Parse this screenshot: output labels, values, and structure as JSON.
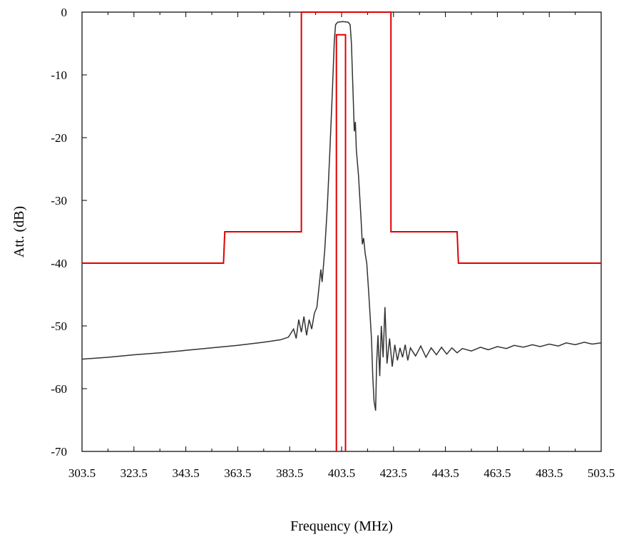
{
  "chart_data": {
    "type": "line",
    "xlabel": "Frequency (MHz)",
    "ylabel": "Att. (dB)",
    "xlim": [
      303.5,
      503.5
    ],
    "ylim": [
      -70,
      0
    ],
    "x_ticks": [
      303.5,
      323.5,
      343.5,
      363.5,
      383.5,
      403.5,
      423.5,
      443.5,
      463.5,
      483.5,
      503.5
    ],
    "x_tick_labels": [
      "303.5",
      "323.5",
      "343.5",
      "363.5",
      "383.5",
      "403.5",
      "423.5",
      "443.5",
      "463.5",
      "483.5",
      "503.5"
    ],
    "y_ticks": [
      0,
      -10,
      -20,
      -30,
      -40,
      -50,
      -60,
      -70
    ],
    "y_tick_labels": [
      "0",
      "-10",
      "-20",
      "-30",
      "-40",
      "-50",
      "-60",
      "-70"
    ],
    "grid": false,
    "colors": {
      "response": "#333333",
      "mask": "#e00000",
      "axis": "#000000"
    },
    "series": [
      {
        "role": "response",
        "points": [
          [
            303.5,
            -55.3
          ],
          [
            313.5,
            -55.0
          ],
          [
            323.5,
            -54.6
          ],
          [
            333.5,
            -54.3
          ],
          [
            343.5,
            -53.9
          ],
          [
            353.5,
            -53.5
          ],
          [
            363.5,
            -53.1
          ],
          [
            373.5,
            -52.6
          ],
          [
            380.0,
            -52.2
          ],
          [
            383.0,
            -51.8
          ],
          [
            385.0,
            -50.5
          ],
          [
            386.0,
            -52.0
          ],
          [
            387.0,
            -49.0
          ],
          [
            388.0,
            -51.0
          ],
          [
            389.0,
            -48.5
          ],
          [
            390.0,
            -51.5
          ],
          [
            391.0,
            -49.0
          ],
          [
            392.0,
            -50.5
          ],
          [
            393.0,
            -48.0
          ],
          [
            394.0,
            -47.0
          ],
          [
            395.5,
            -41.0
          ],
          [
            396.0,
            -43.0
          ],
          [
            397.0,
            -38.0
          ],
          [
            398.0,
            -31.0
          ],
          [
            399.0,
            -22.0
          ],
          [
            400.0,
            -12.0
          ],
          [
            400.7,
            -4.5
          ],
          [
            401.2,
            -2.0
          ],
          [
            402.0,
            -1.6
          ],
          [
            404.0,
            -1.5
          ],
          [
            406.0,
            -1.6
          ],
          [
            406.8,
            -2.0
          ],
          [
            407.3,
            -5.0
          ],
          [
            408.0,
            -14.0
          ],
          [
            408.4,
            -19.0
          ],
          [
            408.8,
            -17.5
          ],
          [
            409.2,
            -22.0
          ],
          [
            410.0,
            -26.0
          ],
          [
            411.0,
            -33.0
          ],
          [
            411.5,
            -37.0
          ],
          [
            412.0,
            -36.0
          ],
          [
            412.6,
            -38.5
          ],
          [
            413.2,
            -40.0
          ],
          [
            414.0,
            -45.0
          ],
          [
            415.0,
            -52.0
          ],
          [
            415.5,
            -58.0
          ],
          [
            416.0,
            -62.0
          ],
          [
            416.6,
            -63.5
          ],
          [
            417.0,
            -56.0
          ],
          [
            417.5,
            -51.5
          ],
          [
            418.2,
            -58.0
          ],
          [
            418.8,
            -50.0
          ],
          [
            419.5,
            -55.0
          ],
          [
            420.2,
            -47.0
          ],
          [
            421.0,
            -56.0
          ],
          [
            422.0,
            -52.0
          ],
          [
            423.0,
            -56.5
          ],
          [
            424.0,
            -53.0
          ],
          [
            425.0,
            -55.5
          ],
          [
            426.0,
            -53.5
          ],
          [
            427.0,
            -55.0
          ],
          [
            428.0,
            -53.0
          ],
          [
            429.0,
            -55.5
          ],
          [
            430.0,
            -53.5
          ],
          [
            432.0,
            -54.8
          ],
          [
            434.0,
            -53.2
          ],
          [
            436.0,
            -55.0
          ],
          [
            438.0,
            -53.5
          ],
          [
            440.0,
            -54.6
          ],
          [
            442.0,
            -53.4
          ],
          [
            444.0,
            -54.5
          ],
          [
            446.0,
            -53.5
          ],
          [
            448.0,
            -54.3
          ],
          [
            450.0,
            -53.6
          ],
          [
            453.5,
            -54.0
          ],
          [
            457.0,
            -53.4
          ],
          [
            460.0,
            -53.8
          ],
          [
            463.5,
            -53.3
          ],
          [
            467.0,
            -53.6
          ],
          [
            470.0,
            -53.1
          ],
          [
            473.5,
            -53.4
          ],
          [
            477.0,
            -53.0
          ],
          [
            480.0,
            -53.3
          ],
          [
            483.5,
            -52.9
          ],
          [
            487.0,
            -53.2
          ],
          [
            490.0,
            -52.7
          ],
          [
            493.5,
            -53.0
          ],
          [
            497.0,
            -52.6
          ],
          [
            500.0,
            -52.9
          ],
          [
            503.5,
            -52.7
          ]
        ]
      },
      {
        "role": "mask-upper",
        "points": [
          [
            303.5,
            -40.0
          ],
          [
            358.0,
            -40.0
          ],
          [
            358.5,
            -35.0
          ],
          [
            388.0,
            -35.0
          ],
          [
            388.0,
            0.0
          ],
          [
            422.5,
            0.0
          ],
          [
            422.5,
            -35.0
          ],
          [
            448.0,
            -35.0
          ],
          [
            448.5,
            -40.0
          ],
          [
            503.5,
            -40.0
          ]
        ]
      },
      {
        "role": "mask-lower",
        "points": [
          [
            401.5,
            -70.0
          ],
          [
            401.5,
            -3.6
          ],
          [
            405.0,
            -3.6
          ],
          [
            405.0,
            -70.0
          ]
        ]
      }
    ]
  }
}
